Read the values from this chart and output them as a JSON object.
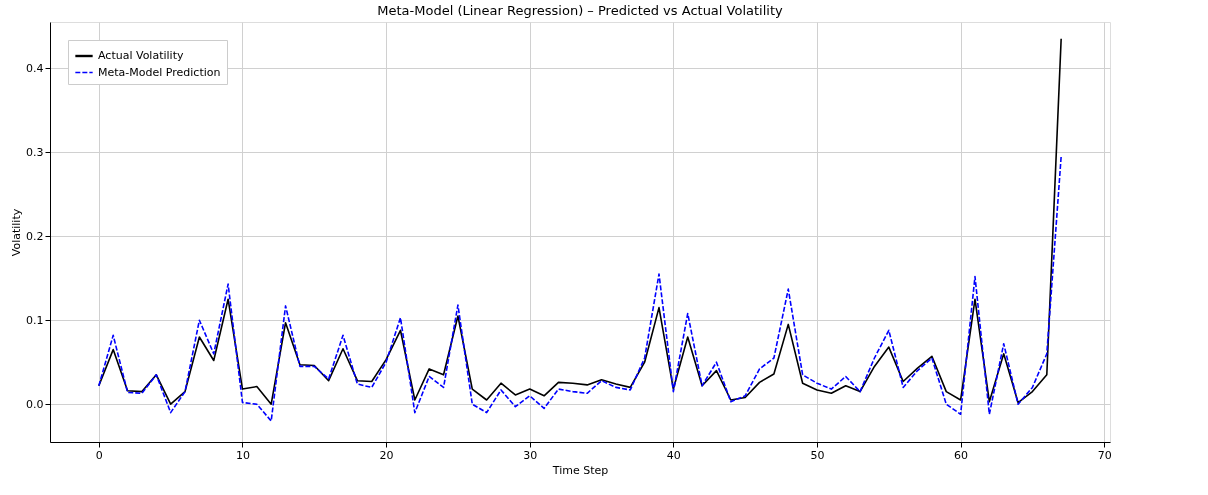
{
  "chart_data": {
    "type": "line",
    "title": "Meta-Model (Linear Regression) – Predicted vs Actual Volatility",
    "xlabel": "Time Step",
    "ylabel": "Volatility",
    "x": [
      0,
      1,
      2,
      3,
      4,
      5,
      6,
      7,
      8,
      9,
      10,
      11,
      12,
      13,
      14,
      15,
      16,
      17,
      18,
      19,
      20,
      21,
      22,
      23,
      24,
      25,
      26,
      27,
      28,
      29,
      30,
      31,
      32,
      33,
      34,
      35,
      36,
      37,
      38,
      39,
      40,
      41,
      42,
      43,
      44,
      45,
      46,
      47,
      48,
      49,
      50,
      51,
      52,
      53,
      54,
      55,
      56,
      57,
      58,
      59,
      60,
      61,
      62,
      63,
      64,
      65,
      66,
      67
    ],
    "series": [
      {
        "name": "Actual Volatility",
        "color": "#000000",
        "line_style": "solid",
        "values": [
          0.022,
          0.065,
          0.016,
          0.015,
          0.035,
          0.0,
          0.015,
          0.08,
          0.052,
          0.125,
          0.018,
          0.021,
          0.0,
          0.097,
          0.047,
          0.046,
          0.028,
          0.066,
          0.028,
          0.027,
          0.053,
          0.088,
          0.005,
          0.042,
          0.035,
          0.105,
          0.018,
          0.005,
          0.025,
          0.011,
          0.018,
          0.01,
          0.026,
          0.025,
          0.023,
          0.029,
          0.024,
          0.02,
          0.05,
          0.115,
          0.018,
          0.08,
          0.022,
          0.04,
          0.005,
          0.008,
          0.026,
          0.036,
          0.095,
          0.025,
          0.017,
          0.013,
          0.022,
          0.015,
          0.045,
          0.068,
          0.027,
          0.043,
          0.057,
          0.015,
          0.005,
          0.125,
          0.003,
          0.06,
          0.002,
          0.015,
          0.035,
          0.435
        ]
      },
      {
        "name": "Meta-Model Prediction",
        "color": "#0000ff",
        "line_style": "dashed",
        "values": [
          0.022,
          0.082,
          0.014,
          0.013,
          0.035,
          -0.01,
          0.015,
          0.1,
          0.06,
          0.143,
          0.002,
          0.0,
          -0.02,
          0.117,
          0.045,
          0.045,
          0.03,
          0.082,
          0.024,
          0.02,
          0.05,
          0.103,
          -0.01,
          0.033,
          0.02,
          0.118,
          0.0,
          -0.01,
          0.017,
          -0.003,
          0.01,
          -0.005,
          0.018,
          0.015,
          0.013,
          0.028,
          0.02,
          0.017,
          0.055,
          0.155,
          0.015,
          0.108,
          0.022,
          0.05,
          0.003,
          0.01,
          0.042,
          0.055,
          0.137,
          0.035,
          0.025,
          0.018,
          0.033,
          0.015,
          0.055,
          0.088,
          0.02,
          0.04,
          0.055,
          0.0,
          -0.012,
          0.152,
          -0.012,
          0.072,
          0.0,
          0.02,
          0.06,
          0.295
        ]
      }
    ],
    "xlim": [
      -3.4,
      70.4
    ],
    "ylim": [
      -0.045,
      0.455
    ],
    "xticks": [
      0,
      10,
      20,
      30,
      40,
      50,
      60,
      70
    ],
    "yticks": [
      {
        "value": 0,
        "label": "0.0"
      },
      0.1,
      0.2,
      0.3,
      0.4
    ],
    "grid": true,
    "legend": "top left",
    "marker": "none"
  }
}
